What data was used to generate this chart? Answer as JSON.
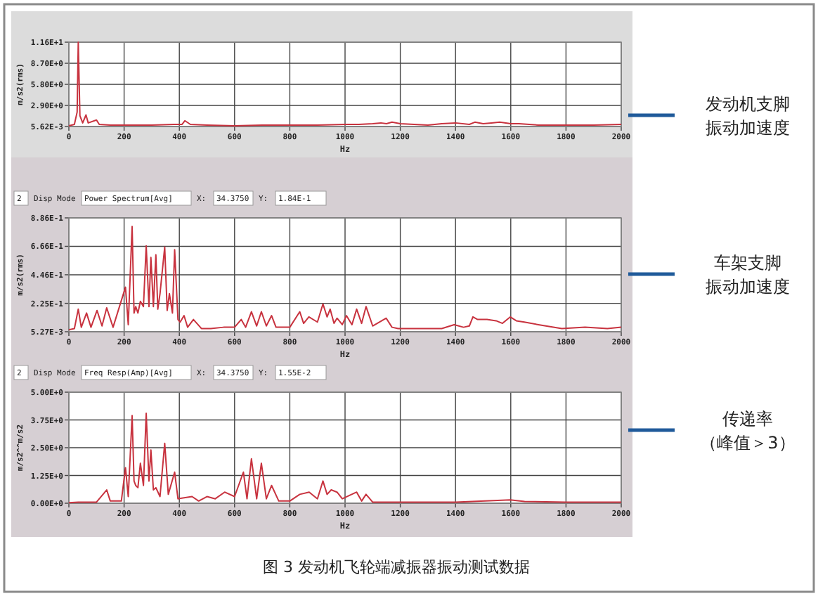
{
  "chart_data": [
    {
      "type": "line",
      "annotations": [
        "发动机支脚",
        "振动加速度"
      ],
      "xlabel": "Hz",
      "ylabel": "m/s2(rms)",
      "xlim": [
        0,
        2000
      ],
      "xticks": [
        0,
        200,
        400,
        600,
        800,
        1000,
        1200,
        1400,
        1600,
        1800,
        2000
      ],
      "ylim": [
        0.00562,
        11.6
      ],
      "yticks": [
        {
          "value": 0.00562,
          "label": "5.62E-3"
        },
        {
          "value": 2.9,
          "label": "2.90E+0"
        },
        {
          "value": 5.8,
          "label": "5.80E+0"
        },
        {
          "value": 8.7,
          "label": "8.70E+0"
        },
        {
          "value": 11.6,
          "label": "1.16E+1"
        }
      ],
      "grid": true,
      "x": [
        0,
        20,
        30,
        34,
        40,
        50,
        62,
        70,
        100,
        110,
        150,
        200,
        250,
        300,
        380,
        410,
        420,
        440,
        500,
        600,
        700,
        800,
        900,
        1000,
        1050,
        1100,
        1130,
        1150,
        1170,
        1200,
        1250,
        1300,
        1350,
        1400,
        1450,
        1470,
        1500,
        1530,
        1560,
        1600,
        1630,
        1700,
        1800,
        1900,
        2000
      ],
      "series": [
        {
          "color": "#c8333f",
          "values": [
            0.1,
            0.3,
            2,
            11.6,
            1.5,
            0.5,
            1.6,
            0.5,
            0.9,
            0.3,
            0.2,
            0.2,
            0.2,
            0.2,
            0.3,
            0.3,
            0.8,
            0.3,
            0.2,
            0.1,
            0.2,
            0.2,
            0.2,
            0.3,
            0.3,
            0.4,
            0.5,
            0.4,
            0.6,
            0.4,
            0.3,
            0.2,
            0.4,
            0.5,
            0.3,
            0.6,
            0.4,
            0.5,
            0.6,
            0.4,
            0.4,
            0.2,
            0.2,
            0.2,
            0.3
          ]
        }
      ]
    },
    {
      "type": "line",
      "xlabel": "Hz",
      "ylabel": "m/s2(rms)",
      "xlim": [
        0,
        2000
      ],
      "xticks": [
        0,
        200,
        400,
        600,
        800,
        1000,
        1200,
        1400,
        1600,
        1800,
        2000
      ],
      "ylim": [
        0.00527,
        0.886
      ],
      "yticks": [
        {
          "value": 0.00527,
          "label": "5.27E-3"
        },
        {
          "value": 0.225,
          "label": "2.25E-1"
        },
        {
          "value": 0.446,
          "label": "4.46E-1"
        },
        {
          "value": 0.666,
          "label": "6.66E-1"
        },
        {
          "value": 0.886,
          "label": "8.86E-1"
        }
      ],
      "grid": true,
      "annotations": [
        "2",
        "Disp Mode",
        "Power Spectrum[Avg]",
        "X:",
        "34.3750",
        "Y:",
        "1.84E-1",
        "车架支脚",
        "振动加速度"
      ],
      "x": [
        0,
        20,
        34,
        45,
        64,
        80,
        102,
        120,
        137,
        160,
        205,
        215,
        229,
        236,
        242,
        250,
        259,
        270,
        280,
        290,
        297,
        306,
        315,
        322,
        330,
        347,
        356,
        364,
        375,
        383,
        395,
        403,
        417,
        430,
        451,
        480,
        514,
        560,
        600,
        624,
        640,
        661,
        680,
        697,
        715,
        734,
        750,
        768,
        800,
        836,
        850,
        869,
        900,
        920,
        935,
        946,
        960,
        971,
        990,
        1005,
        1025,
        1042,
        1060,
        1076,
        1100,
        1149,
        1170,
        1192,
        1276,
        1350,
        1395,
        1429,
        1450,
        1463,
        1480,
        1514,
        1547,
        1570,
        1598,
        1620,
        1649,
        1700,
        1785,
        1869,
        1950,
        2000
      ],
      "series": [
        {
          "color": "#c8333f",
          "values": [
            0.02,
            0.03,
            0.18,
            0.04,
            0.15,
            0.04,
            0.17,
            0.05,
            0.19,
            0.04,
            0.35,
            0.06,
            0.82,
            0.15,
            0.2,
            0.15,
            0.24,
            0.2,
            0.67,
            0.2,
            0.58,
            0.2,
            0.6,
            0.18,
            0.3,
            0.66,
            0.17,
            0.3,
            0.15,
            0.64,
            0.1,
            0.08,
            0.13,
            0.04,
            0.1,
            0.03,
            0.03,
            0.04,
            0.04,
            0.1,
            0.04,
            0.16,
            0.05,
            0.16,
            0.05,
            0.13,
            0.04,
            0.04,
            0.04,
            0.16,
            0.07,
            0.12,
            0.08,
            0.22,
            0.12,
            0.18,
            0.07,
            0.11,
            0.06,
            0.13,
            0.06,
            0.18,
            0.07,
            0.2,
            0.05,
            0.11,
            0.04,
            0.03,
            0.03,
            0.03,
            0.06,
            0.04,
            0.05,
            0.12,
            0.1,
            0.1,
            0.09,
            0.07,
            0.12,
            0.09,
            0.08,
            0.06,
            0.03,
            0.04,
            0.03,
            0.04
          ]
        }
      ]
    },
    {
      "type": "line",
      "xlabel": "Hz",
      "ylabel": "m/s2^^m/s2",
      "xlim": [
        0,
        2000
      ],
      "xticks": [
        0,
        200,
        400,
        600,
        800,
        1000,
        1200,
        1400,
        1600,
        1800,
        2000
      ],
      "ylim": [
        0,
        5
      ],
      "yticks": [
        {
          "value": 0,
          "label": "0.00E+0"
        },
        {
          "value": 1.25,
          "label": "1.25E+0"
        },
        {
          "value": 2.5,
          "label": "2.50E+0"
        },
        {
          "value": 3.75,
          "label": "3.75E+0"
        },
        {
          "value": 5,
          "label": "5.00E+0"
        }
      ],
      "grid": true,
      "annotations": [
        "2",
        "Disp Mode",
        "Freq Resp(Amp)[Avg]",
        "X:",
        "34.3750",
        "Y:",
        "1.55E-2",
        "传递率",
        "（峰值＞3）",
        "图 3 发动机飞轮端减振器振动测试数据"
      ],
      "x": [
        0,
        34,
        100,
        137,
        150,
        190,
        205,
        215,
        229,
        236,
        242,
        250,
        259,
        270,
        280,
        290,
        297,
        306,
        315,
        330,
        347,
        360,
        383,
        395,
        446,
        470,
        500,
        530,
        564,
        600,
        632,
        645,
        661,
        680,
        697,
        715,
        734,
        760,
        800,
        836,
        870,
        900,
        920,
        935,
        950,
        971,
        990,
        1042,
        1060,
        1076,
        1100,
        1200,
        1400,
        1598,
        1650,
        1800,
        2000
      ],
      "series": [
        {
          "color": "#c8333f",
          "values": [
            0.02,
            0.05,
            0.05,
            0.6,
            0.1,
            0.1,
            1.6,
            0.3,
            3.95,
            1.0,
            0.8,
            0.7,
            1.8,
            0.8,
            4.05,
            1.0,
            2.4,
            0.6,
            0.7,
            0.3,
            2.7,
            0.4,
            1.4,
            0.2,
            0.3,
            0.1,
            0.3,
            0.2,
            0.5,
            0.3,
            1.4,
            0.2,
            2.0,
            0.2,
            1.8,
            0.2,
            0.8,
            0.1,
            0.1,
            0.4,
            0.5,
            0.2,
            1.0,
            0.4,
            0.6,
            0.5,
            0.2,
            0.5,
            0.1,
            0.4,
            0.05,
            0.05,
            0.05,
            0.15,
            0.08,
            0.05,
            0.05
          ]
        }
      ]
    }
  ]
}
